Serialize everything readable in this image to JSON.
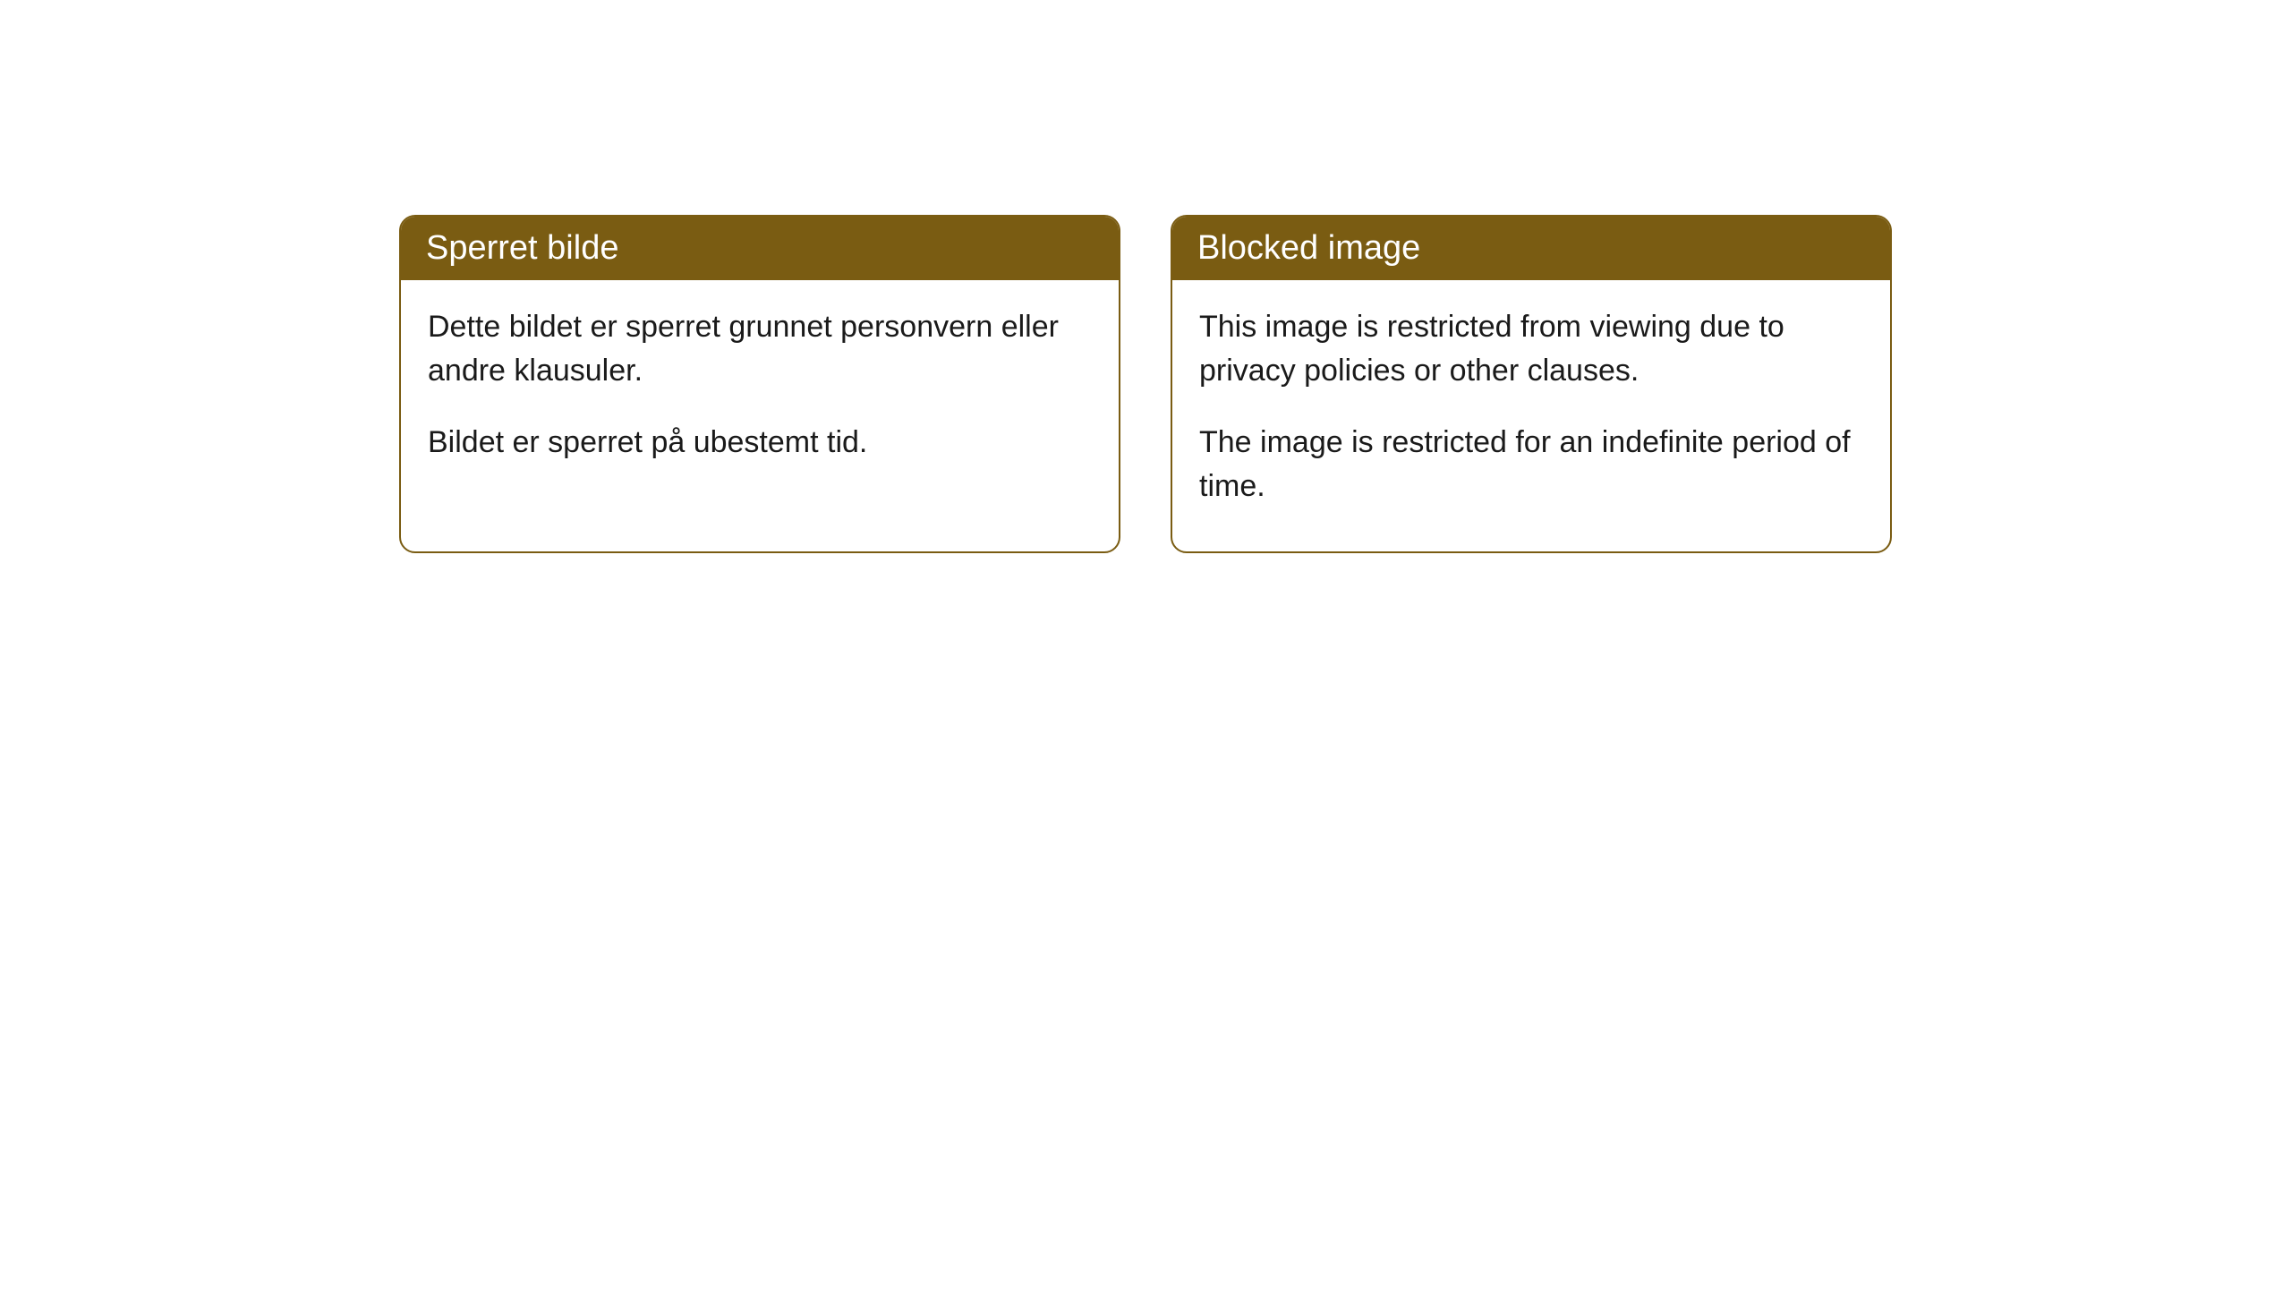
{
  "cards": [
    {
      "title": "Sperret bilde",
      "paragraph1": "Dette bildet er sperret grunnet personvern eller andre klausuler.",
      "paragraph2": "Bildet er sperret på ubestemt tid."
    },
    {
      "title": "Blocked image",
      "paragraph1": "This image is restricted from viewing due to privacy policies or other clauses.",
      "paragraph2": "The image is restricted for an indefinite period of time."
    }
  ],
  "style": {
    "header_background": "#7a5c12",
    "header_text_color": "#ffffff",
    "border_color": "#7a5c12",
    "body_text_color": "#1a1a1a",
    "page_background": "#ffffff",
    "border_radius": 18,
    "title_fontsize": 38,
    "body_fontsize": 34
  }
}
